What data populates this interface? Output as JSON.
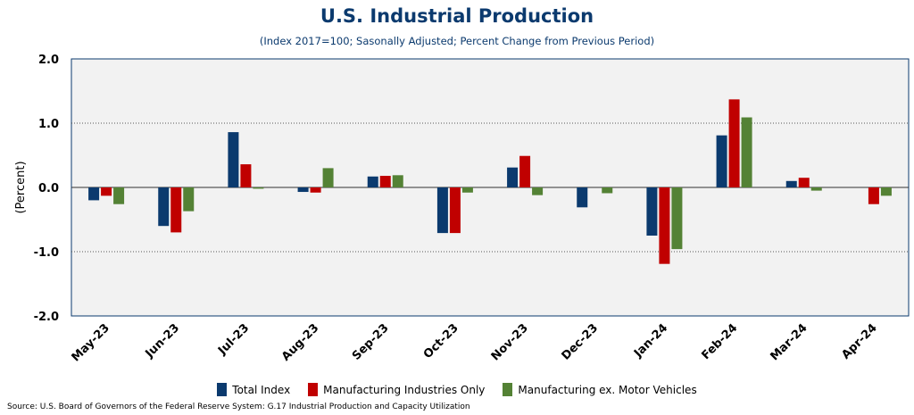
{
  "chart_data": {
    "type": "bar",
    "title": "U.S. Industrial Production",
    "subtitle": "(Index 2017=100; Sasonally Adjusted; Percent Change from Previous Period)",
    "ylabel": "(Percent)",
    "ylim": [
      -2.0,
      2.0
    ],
    "yticks": [
      "2.0",
      "1.0",
      "0.0",
      "-1.0",
      "-2.0"
    ],
    "ytick_values": [
      2.0,
      1.0,
      0.0,
      -1.0,
      -2.0
    ],
    "categories": [
      "May-23",
      "Jun-23",
      "Jul-23",
      "Aug-23",
      "Sep-23",
      "Oct-23",
      "Nov-23",
      "Dec-23",
      "Jan-24",
      "Feb-24",
      "Mar-24",
      "Apr-24"
    ],
    "series": [
      {
        "name": "Total Index",
        "color": "#0b3a6e",
        "values": [
          -0.2,
          -0.6,
          0.86,
          -0.07,
          0.17,
          -0.71,
          0.31,
          -0.31,
          -0.75,
          0.81,
          0.1,
          0.0
        ]
      },
      {
        "name": "Manufacturing Industries Only",
        "color": "#c00000",
        "values": [
          -0.13,
          -0.7,
          0.36,
          -0.08,
          0.18,
          -0.71,
          0.49,
          0.0,
          -1.19,
          1.37,
          0.15,
          -0.26
        ]
      },
      {
        "name": "Manufacturing ex. Motor Vehicles",
        "color": "#548235",
        "values": [
          -0.26,
          -0.37,
          -0.02,
          0.3,
          0.19,
          -0.08,
          -0.12,
          -0.09,
          -0.96,
          1.09,
          -0.05,
          -0.13
        ]
      }
    ],
    "grid": true,
    "gridlines": "dotted horizontal",
    "plot_background": "#f2f2f2",
    "legend_position": "bottom-center",
    "source": "Source: U.S. Board of Governors of the Federal Reserve System: G.17 Industrial Production and Capacity Utilization"
  }
}
